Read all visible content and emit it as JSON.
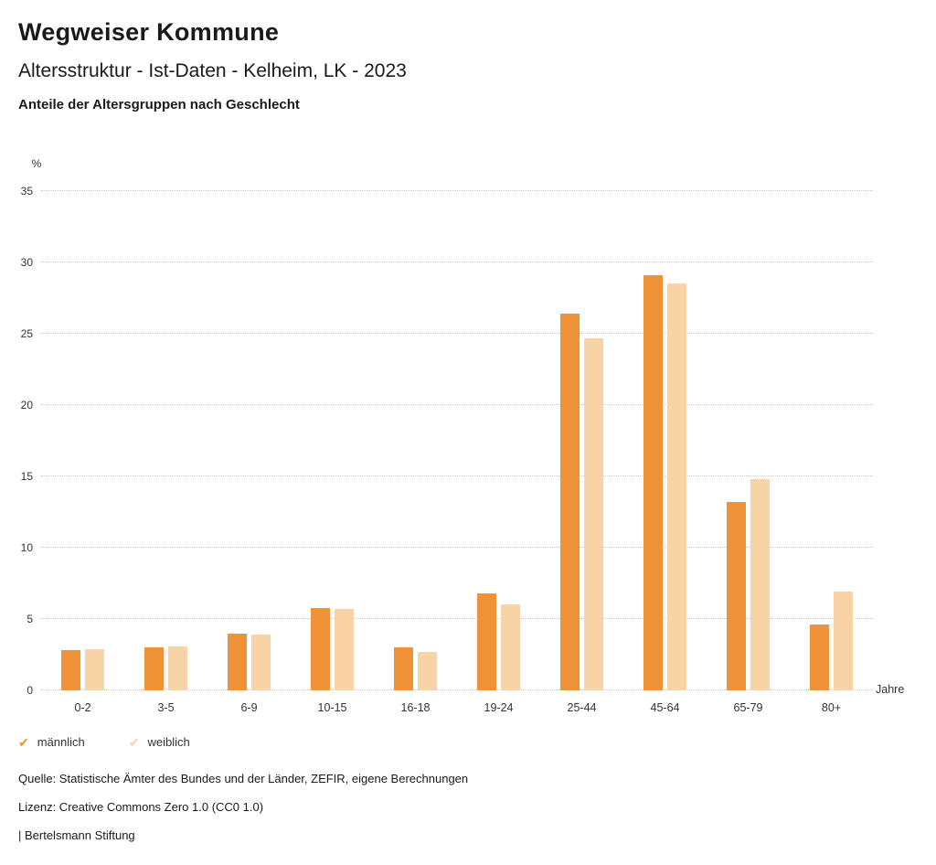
{
  "header": {
    "title": "Wegweiser Kommune",
    "subtitle": "Altersstruktur - Ist-Daten - Kelheim, LK - 2023",
    "chart_heading": "Anteile der Altersgruppen nach Geschlecht"
  },
  "chart_data": {
    "type": "bar",
    "categories": [
      "0-2",
      "3-5",
      "6-9",
      "10-15",
      "16-18",
      "19-24",
      "25-44",
      "45-64",
      "65-79",
      "80+"
    ],
    "series": [
      {
        "name": "männlich",
        "color": "#ef9136",
        "values": [
          2.8,
          3.0,
          4.0,
          5.8,
          3.0,
          6.8,
          26.4,
          29.1,
          13.2,
          4.6
        ]
      },
      {
        "name": "weiblich",
        "color": "#f8d3a5",
        "values": [
          2.9,
          3.1,
          3.9,
          5.7,
          2.7,
          6.0,
          24.7,
          28.5,
          14.8,
          6.9
        ]
      }
    ],
    "ylabel": "%",
    "xlabel": "Jahre",
    "ylim": [
      0,
      35
    ],
    "ytick_step": 5,
    "grid": "dotted-horizontal",
    "legend_position": "bottom-left"
  },
  "legend": {
    "check_icon": "✔"
  },
  "footer": {
    "source": "Quelle: Statistische Ämter des Bundes und der Länder, ZEFIR, eigene Berechnungen",
    "license": "Lizenz: Creative Commons Zero 1.0 (CC0 1.0)",
    "brand": "| Bertelsmann Stiftung"
  }
}
